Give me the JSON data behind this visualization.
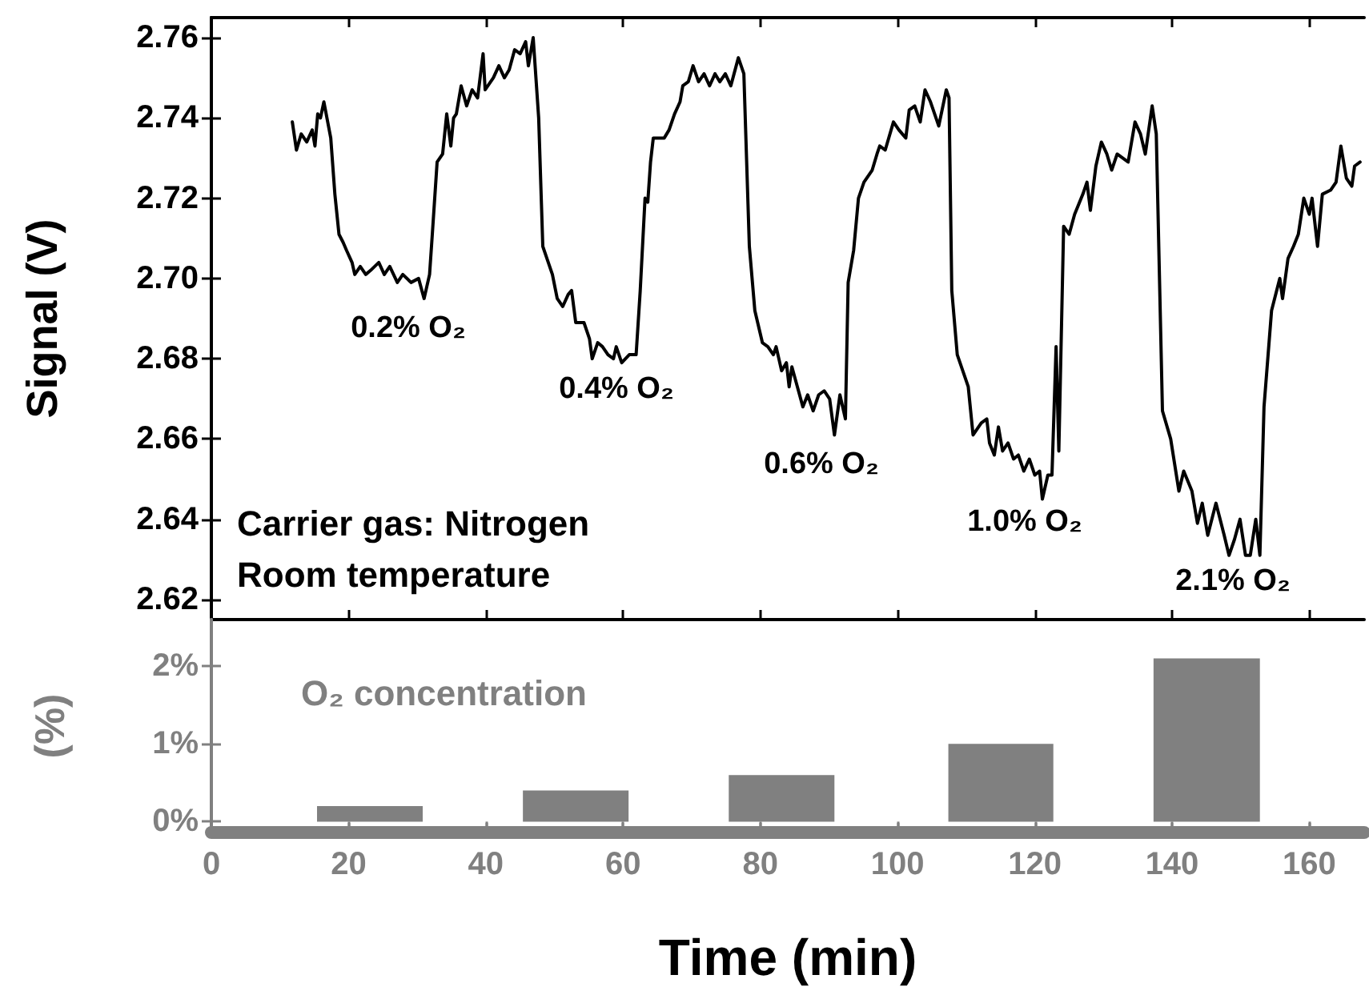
{
  "chart_data": [
    {
      "type": "line",
      "ylabel": "Signal (V)",
      "color": "#000000",
      "marker": "none",
      "line_style": "solid",
      "tick_labels": "y",
      "xlim": [
        0,
        168
      ],
      "xticks": [
        0,
        20,
        40,
        60,
        80,
        100,
        120,
        140,
        160
      ],
      "ylim": [
        2.615,
        2.765
      ],
      "yticks": [
        2.62,
        2.64,
        2.66,
        2.68,
        {
          "value": 2.7,
          "label": "2.70"
        },
        2.72,
        2.74,
        2.76
      ],
      "x": [
        11.8,
        12.4,
        13.1,
        13.9,
        14.7,
        15.1,
        15.5,
        15.9,
        16.4,
        17.4,
        18.0,
        18.6,
        19.2,
        19.7,
        20.5,
        20.9,
        21.7,
        22.5,
        23.2,
        24.4,
        25.2,
        26.0,
        27.1,
        27.9,
        29.1,
        30.2,
        31.0,
        31.8,
        32.2,
        32.9,
        33.7,
        34.3,
        34.9,
        35.3,
        35.7,
        36.4,
        37.2,
        38.0,
        38.8,
        39.6,
        39.9,
        41.1,
        41.9,
        42.7,
        43.4,
        44.2,
        45.0,
        45.8,
        46.2,
        46.9,
        47.7,
        48.3,
        48.9,
        49.7,
        50.4,
        51.2,
        52.0,
        52.5,
        53.1,
        54.3,
        55.1,
        55.5,
        56.3,
        57.0,
        57.8,
        58.6,
        59.0,
        59.8,
        60.9,
        61.9,
        62.5,
        63.2,
        63.6,
        64.0,
        64.4,
        65.2,
        66.0,
        66.7,
        67.5,
        68.3,
        68.7,
        69.5,
        70.2,
        71.0,
        71.8,
        72.6,
        73.4,
        74.1,
        74.9,
        75.7,
        76.8,
        77.6,
        78.4,
        79.2,
        80.3,
        81.1,
        81.9,
        82.3,
        83.1,
        83.8,
        84.2,
        84.6,
        85.4,
        86.2,
        86.9,
        87.7,
        88.5,
        89.3,
        90.1,
        90.8,
        91.6,
        92.4,
        92.8,
        93.6,
        94.3,
        95.1,
        96.3,
        97.0,
        97.4,
        98.2,
        99.4,
        100.2,
        101.2,
        101.7,
        102.5,
        103.3,
        104.0,
        104.8,
        106.0,
        107.1,
        107.5,
        107.9,
        108.7,
        109.5,
        110.3,
        111.0,
        112.2,
        113.0,
        113.4,
        114.1,
        114.7,
        115.3,
        116.1,
        116.9,
        117.6,
        118.4,
        119.2,
        120.0,
        120.7,
        121.1,
        121.9,
        122.5,
        123.1,
        123.5,
        124.2,
        125.0,
        125.8,
        127.0,
        127.6,
        128.1,
        128.9,
        129.7,
        130.5,
        131.2,
        132.0,
        132.8,
        133.6,
        134.6,
        135.4,
        136.1,
        137.1,
        137.7,
        138.6,
        139.8,
        141.0,
        141.7,
        142.9,
        143.7,
        144.4,
        145.2,
        146.4,
        147.6,
        148.3,
        149.1,
        149.9,
        150.7,
        151.4,
        152.2,
        152.8,
        153.4,
        154.5,
        155.7,
        156.1,
        156.9,
        157.7,
        158.4,
        159.2,
        160.0,
        160.4,
        161.2,
        161.9,
        163.1,
        163.9,
        164.6,
        165.4,
        166.2,
        166.6,
        167.4
      ],
      "values": [
        2.739,
        2.732,
        2.736,
        2.734,
        2.737,
        2.733,
        2.741,
        2.74,
        2.744,
        2.735,
        2.721,
        2.711,
        2.709,
        2.707,
        2.704,
        2.701,
        2.703,
        2.701,
        2.702,
        2.704,
        2.701,
        2.703,
        2.699,
        2.701,
        2.699,
        2.7,
        2.695,
        2.701,
        2.711,
        2.729,
        2.731,
        2.741,
        2.733,
        2.74,
        2.741,
        2.748,
        2.743,
        2.747,
        2.745,
        2.756,
        2.747,
        2.75,
        2.753,
        2.75,
        2.752,
        2.757,
        2.756,
        2.759,
        2.753,
        2.76,
        2.74,
        2.708,
        2.705,
        2.701,
        2.695,
        2.693,
        2.696,
        2.697,
        2.689,
        2.689,
        2.685,
        2.68,
        2.684,
        2.683,
        2.681,
        2.68,
        2.683,
        2.679,
        2.681,
        2.681,
        2.697,
        2.72,
        2.719,
        2.729,
        2.735,
        2.735,
        2.735,
        2.737,
        2.741,
        2.744,
        2.748,
        2.749,
        2.753,
        2.749,
        2.751,
        2.748,
        2.751,
        2.749,
        2.751,
        2.748,
        2.755,
        2.751,
        2.708,
        2.692,
        2.684,
        2.683,
        2.681,
        2.683,
        2.677,
        2.679,
        2.673,
        2.678,
        2.673,
        2.668,
        2.671,
        2.667,
        2.671,
        2.672,
        2.67,
        2.661,
        2.671,
        2.665,
        2.699,
        2.707,
        2.72,
        2.724,
        2.727,
        2.731,
        2.733,
        2.732,
        2.739,
        2.737,
        2.735,
        2.742,
        2.743,
        2.739,
        2.747,
        2.744,
        2.738,
        2.747,
        2.745,
        2.697,
        2.681,
        2.677,
        2.673,
        2.661,
        2.664,
        2.665,
        2.659,
        2.656,
        2.663,
        2.657,
        2.659,
        2.655,
        2.656,
        2.652,
        2.655,
        2.651,
        2.652,
        2.645,
        2.651,
        2.651,
        2.683,
        2.657,
        2.713,
        2.711,
        2.716,
        2.721,
        2.724,
        2.717,
        2.728,
        2.734,
        2.731,
        2.727,
        2.731,
        2.73,
        2.729,
        2.739,
        2.736,
        2.731,
        2.743,
        2.736,
        2.667,
        2.66,
        2.647,
        2.652,
        2.647,
        2.639,
        2.644,
        2.636,
        2.644,
        2.636,
        2.631,
        2.635,
        2.64,
        2.631,
        2.631,
        2.64,
        2.631,
        2.668,
        2.692,
        2.7,
        2.695,
        2.705,
        2.708,
        2.711,
        2.72,
        2.716,
        2.72,
        2.708,
        2.721,
        2.722,
        2.724,
        2.733,
        2.725,
        2.723,
        2.728,
        2.729
      ],
      "annotations": [
        "0.2% O₂",
        "0.4% O₂",
        "0.6% O₂",
        "1.0% O₂",
        "2.1% O₂",
        "Carrier gas: Nitrogen",
        "Room temperature"
      ]
    },
    {
      "type": "area",
      "xlabel": "Time (min)",
      "ylabel": "(%)",
      "color": "#808080",
      "marker": "none",
      "xlim": [
        0,
        168
      ],
      "xticks": [
        0,
        20,
        40,
        60,
        80,
        100,
        120,
        140,
        160
      ],
      "ylim": [
        -0.14,
        2.6
      ],
      "yticks": [
        {
          "value": 0,
          "label": "0%"
        },
        {
          "value": 1,
          "label": "1%"
        },
        {
          "value": 2,
          "label": "2%"
        }
      ],
      "x": [
        0,
        15.4,
        15.4,
        30.8,
        30.8,
        45.4,
        45.4,
        60.8,
        60.8,
        75.4,
        75.4,
        90.8,
        90.8,
        107.4,
        107.4,
        122.7,
        122.7,
        137.3,
        137.3,
        152.8,
        152.8,
        168
      ],
      "values": [
        0,
        0,
        0.2,
        0.2,
        0,
        0,
        0.4,
        0.4,
        0,
        0,
        0.6,
        0.6,
        0,
        0,
        1.0,
        1.0,
        0,
        0,
        2.1,
        2.1,
        0,
        0
      ],
      "annotations": [
        "O₂ concentration"
      ]
    }
  ]
}
